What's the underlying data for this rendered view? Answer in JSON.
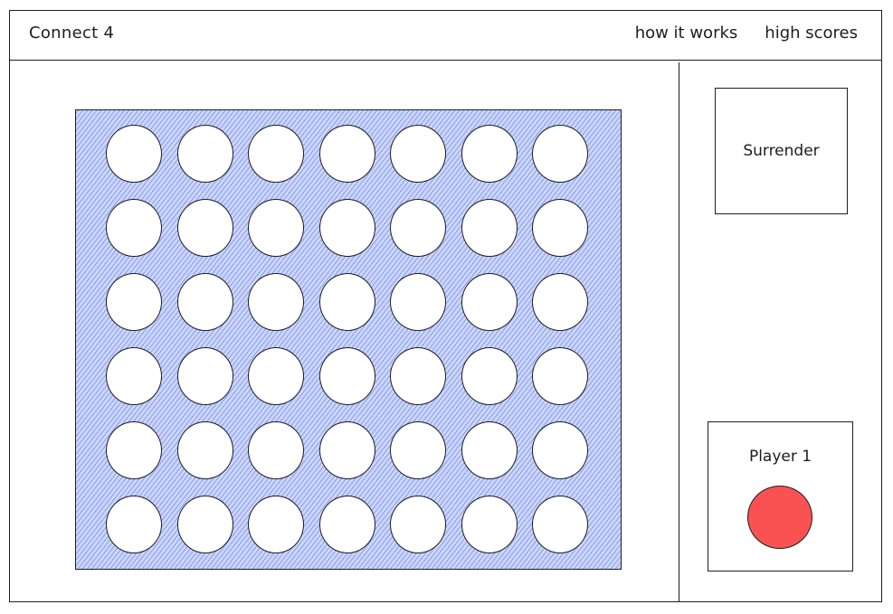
{
  "header": {
    "title": "Connect 4",
    "nav": [
      {
        "label": "how it works"
      },
      {
        "label": "high scores"
      }
    ]
  },
  "board": {
    "columns": 7,
    "rows": 6,
    "cells": [
      [
        "empty",
        "empty",
        "empty",
        "empty",
        "empty",
        "empty",
        "empty"
      ],
      [
        "empty",
        "empty",
        "empty",
        "empty",
        "empty",
        "empty",
        "empty"
      ],
      [
        "empty",
        "empty",
        "empty",
        "empty",
        "empty",
        "empty",
        "empty"
      ],
      [
        "empty",
        "empty",
        "empty",
        "empty",
        "empty",
        "empty",
        "empty"
      ],
      [
        "empty",
        "empty",
        "empty",
        "empty",
        "empty",
        "empty",
        "empty"
      ],
      [
        "empty",
        "empty",
        "empty",
        "empty",
        "empty",
        "empty",
        "empty"
      ]
    ],
    "colors": {
      "board_fill": "#4c6ef5",
      "empty_cell": "#ffffff"
    }
  },
  "sidebar": {
    "surrender_label": "Surrender",
    "current_player": {
      "label": "Player 1",
      "token_color": "#fa5252"
    }
  }
}
